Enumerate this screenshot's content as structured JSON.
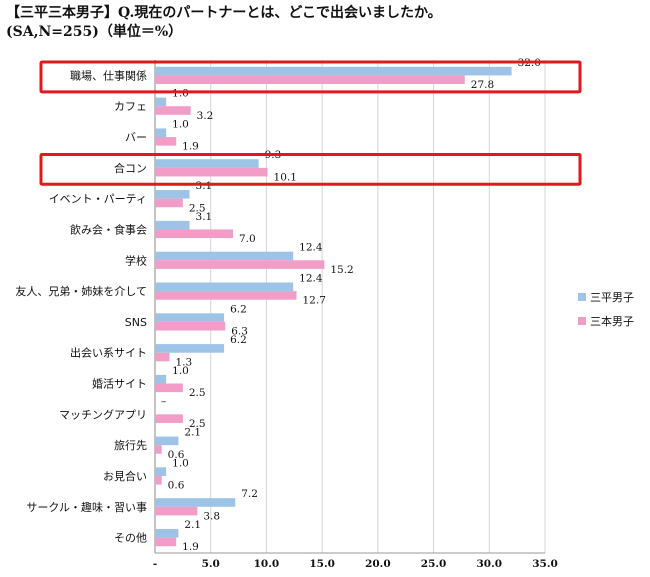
{
  "title": {
    "line1": "【三平三本男子】Q.現在のパートナーとは、どこで出会いましたか。",
    "line2": "(SA,N=255)（単位＝%）"
  },
  "chart_data": {
    "type": "bar",
    "orientation": "horizontal",
    "categories": [
      "職場、仕事関係",
      "カフェ",
      "バー",
      "合コン",
      "イベント・パーティ",
      "飲み会・食事会",
      "学校",
      "友人、兄弟・姉妹を介して",
      "SNS",
      "出会い系サイト",
      "婚活サイト",
      "マッチングアプリ",
      "旅行先",
      "お見合い",
      "サークル・趣味・習い事",
      "その他"
    ],
    "series": [
      {
        "name": "三平男子",
        "color": "#9dc3e6",
        "values": [
          32.0,
          1.0,
          1.0,
          9.3,
          3.1,
          3.1,
          12.4,
          12.4,
          6.2,
          6.2,
          1.0,
          null,
          2.1,
          1.0,
          7.2,
          2.1
        ],
        "labels": [
          "32.0",
          "1.0",
          "1.0",
          "9.3",
          "3.1",
          "3.1",
          "12.4",
          "12.4",
          "6.2",
          "6.2",
          "1.0",
          "–",
          "2.1",
          "1.0",
          "7.2",
          "2.1"
        ]
      },
      {
        "name": "三本男子",
        "color": "#f29cc8",
        "values": [
          27.8,
          3.2,
          1.9,
          10.1,
          2.5,
          7.0,
          15.2,
          12.7,
          6.3,
          1.3,
          2.5,
          2.5,
          0.6,
          0.6,
          3.8,
          1.9
        ],
        "labels": [
          "27.8",
          "3.2",
          "1.9",
          "10.1",
          "2.5",
          "7.0",
          "15.2",
          "12.7",
          "6.3",
          "1.3",
          "2.5",
          "2.5",
          "0.6",
          "0.6",
          "3.8",
          "1.9"
        ]
      }
    ],
    "xlim": [
      0,
      35
    ],
    "xticks": [
      "-",
      "5.0",
      "10.0",
      "15.0",
      "20.0",
      "25.0",
      "30.0",
      "35.0"
    ],
    "highlighted_categories": [
      "職場、仕事関係",
      "合コン"
    ],
    "highlight_color": "#e0191e",
    "legend_position": "right",
    "grid": true
  }
}
